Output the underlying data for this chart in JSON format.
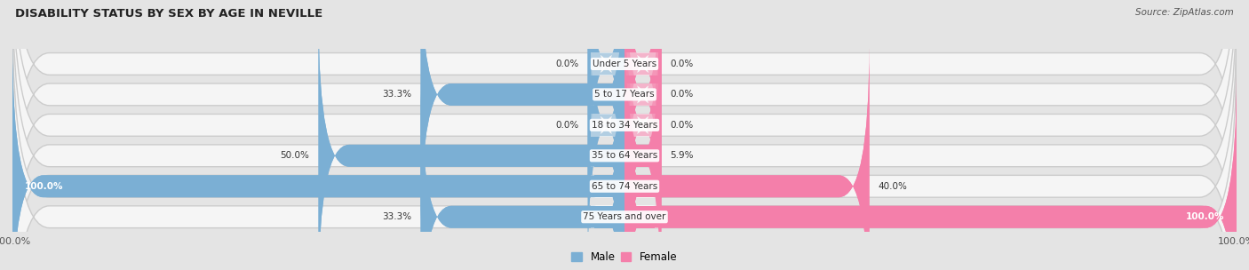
{
  "title": "DISABILITY STATUS BY SEX BY AGE IN NEVILLE",
  "source": "Source: ZipAtlas.com",
  "categories": [
    "Under 5 Years",
    "5 to 17 Years",
    "18 to 34 Years",
    "35 to 64 Years",
    "65 to 74 Years",
    "75 Years and over"
  ],
  "male_values": [
    0.0,
    33.3,
    0.0,
    50.0,
    100.0,
    33.3
  ],
  "female_values": [
    0.0,
    0.0,
    0.0,
    5.9,
    40.0,
    100.0
  ],
  "male_color": "#7bafd4",
  "female_color": "#f47faa",
  "fig_bg_color": "#e4e4e4",
  "row_bg_color": "#f5f5f5",
  "row_border_color": "#cccccc",
  "label_color": "#333333",
  "max_val": 100.0,
  "bar_height": 0.72,
  "legend_male": "Male",
  "legend_female": "Female",
  "stub_val": 6.0
}
